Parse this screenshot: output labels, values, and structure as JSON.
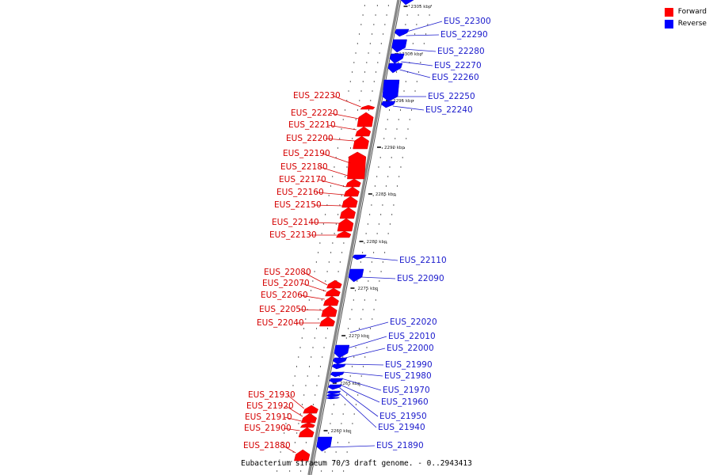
{
  "caption": "Eubacterium siraeum 70/3 draft genome. - 0..2943413",
  "legend": [
    {
      "label": "Forward",
      "color": "#ff0000"
    },
    {
      "label": "Reverse",
      "color": "#0000ff"
    }
  ],
  "colors": {
    "forward": "#ff0000",
    "reverse": "#0000ff",
    "forward_text": "#d40000",
    "reverse_text": "#1a1acc",
    "backbone": "#888888"
  },
  "ticks": [
    "2305 kbp",
    "2300 kbp",
    "2295 kbp",
    "2290 kbp",
    "2285 kbp",
    "2280 kbp",
    "2275 kbp",
    "2270 kbp",
    "2265 kbp",
    "2260 kbp"
  ],
  "genes": {
    "reverse": [
      "EUS_22300",
      "EUS_22290",
      "EUS_22280",
      "EUS_22270",
      "EUS_22260",
      "EUS_22250",
      "EUS_22240",
      "EUS_22110",
      "EUS_22090",
      "EUS_22020",
      "EUS_22010",
      "EUS_22000",
      "EUS_21990",
      "EUS_21980",
      "EUS_21970",
      "EUS_21960",
      "EUS_21950",
      "EUS_21940",
      "EUS_21890"
    ],
    "forward": [
      "EUS_22230",
      "EUS_22220",
      "EUS_22210",
      "EUS_22200",
      "EUS_22190",
      "EUS_22180",
      "EUS_22170",
      "EUS_22160",
      "EUS_22150",
      "EUS_22140",
      "EUS_22130",
      "EUS_22080",
      "EUS_22070",
      "EUS_22060",
      "EUS_22050",
      "EUS_22040",
      "EUS_21930",
      "EUS_21920",
      "EUS_21910",
      "EUS_21900",
      "EUS_21880"
    ]
  }
}
